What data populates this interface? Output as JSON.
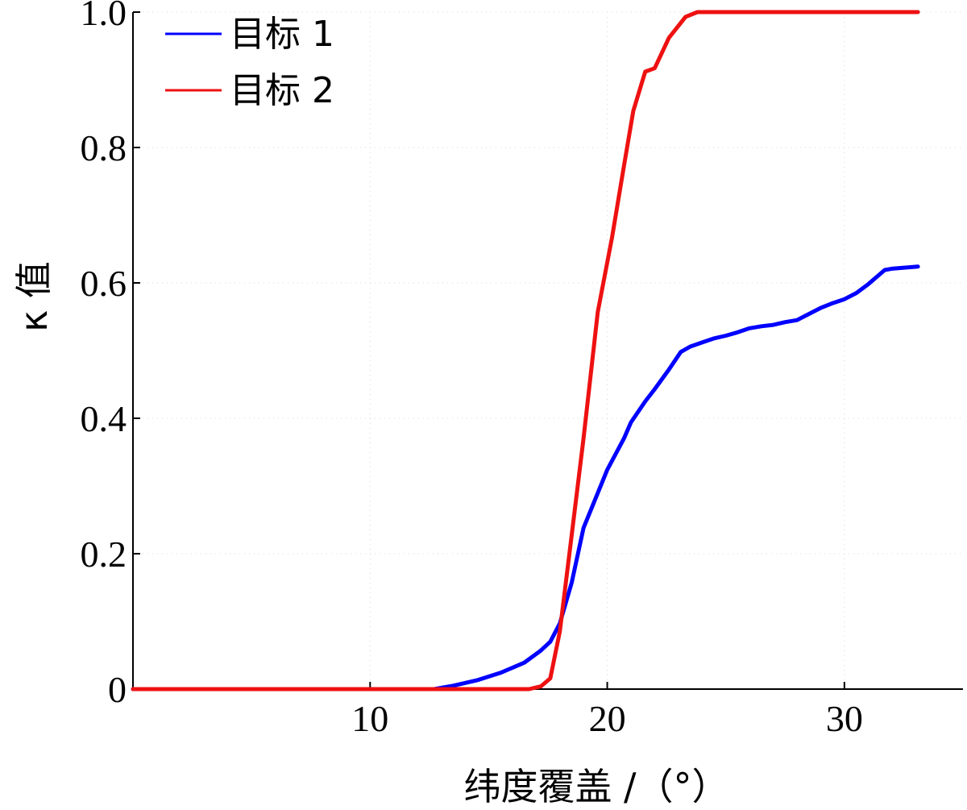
{
  "chart_data": {
    "type": "line",
    "title": "",
    "xlabel": "纬度覆盖 /（°）",
    "ylabel": "κ 值",
    "xlim": [
      0,
      35
    ],
    "ylim": [
      0,
      1.0
    ],
    "xticks": [
      10,
      20,
      30
    ],
    "xtick_labels": [
      "10",
      "20",
      "30"
    ],
    "yticks": [
      0,
      0.2,
      0.4,
      0.6,
      0.8,
      1.0
    ],
    "ytick_labels": [
      "0",
      "0.2",
      "0.4",
      "0.6",
      "0.8",
      "1.0"
    ],
    "grid": true,
    "legend": "top-left",
    "series": [
      {
        "name": "目标 1",
        "color": "#0000ff",
        "x": [
          0,
          9,
          12.7,
          13.5,
          14.5,
          15.5,
          16.5,
          17.2,
          17.6,
          18.0,
          18.5,
          19.0,
          20.0,
          20.7,
          21.0,
          21.6,
          22.0,
          22.6,
          23.1,
          23.5,
          24.0,
          24.5,
          25.0,
          25.5,
          26.0,
          26.5,
          27.0,
          27.5,
          28.0,
          28.5,
          29.0,
          29.5,
          30.0,
          30.5,
          31.0,
          31.7,
          32.0,
          33.1
        ],
        "y": [
          0,
          0,
          0,
          0.005,
          0.013,
          0.024,
          0.039,
          0.057,
          0.07,
          0.097,
          0.157,
          0.238,
          0.324,
          0.37,
          0.394,
          0.425,
          0.443,
          0.472,
          0.498,
          0.506,
          0.512,
          0.518,
          0.522,
          0.527,
          0.533,
          0.536,
          0.538,
          0.542,
          0.545,
          0.554,
          0.563,
          0.57,
          0.576,
          0.585,
          0.598,
          0.619,
          0.621,
          0.624
        ]
      },
      {
        "name": "目标 2",
        "color": "#ee1111",
        "x": [
          0,
          16.7,
          17.2,
          17.6,
          18.0,
          18.5,
          19.0,
          19.6,
          20.2,
          20.7,
          21.1,
          21.6,
          22.0,
          22.6,
          23.3,
          23.8,
          24.3,
          33.1
        ],
        "y": [
          0,
          0,
          0.004,
          0.016,
          0.085,
          0.227,
          0.37,
          0.557,
          0.667,
          0.772,
          0.854,
          0.912,
          0.917,
          0.962,
          0.993,
          1.0,
          1.0,
          1.0
        ]
      }
    ]
  }
}
